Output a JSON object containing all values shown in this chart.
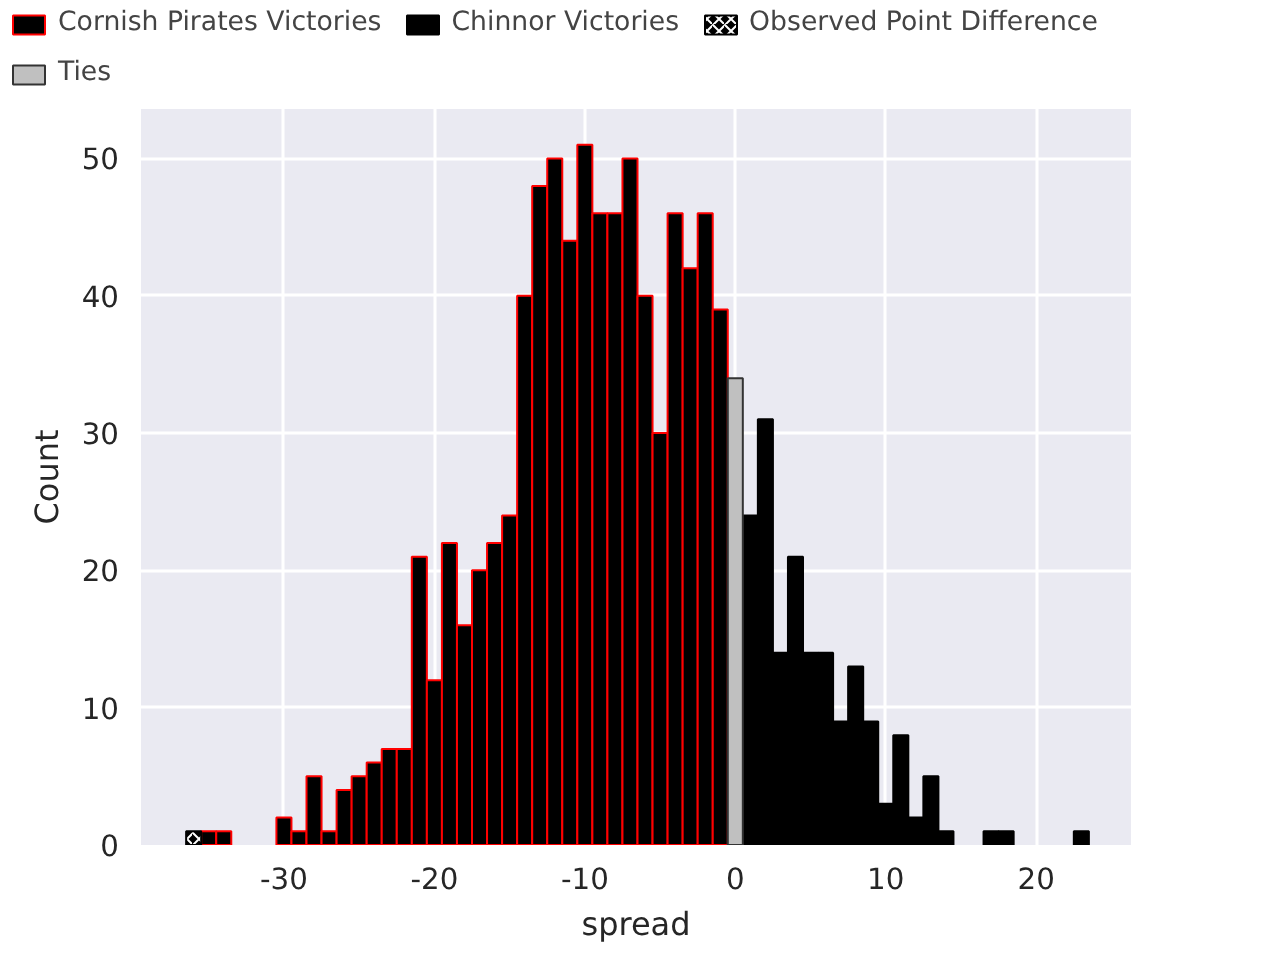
{
  "chart_data": {
    "type": "bar",
    "xlabel": "spread",
    "ylabel": "Count",
    "xlim": [
      -39.5,
      26.3
    ],
    "ylim": [
      0,
      53.6
    ],
    "xticks": [
      -30,
      -20,
      -10,
      0,
      10,
      20
    ],
    "yticks": [
      0,
      10,
      20,
      30,
      40,
      50
    ],
    "grid": true,
    "legend": "top",
    "series": [
      {
        "name": "Cornish Pirates Victories",
        "color": "#000000",
        "x": [
          -35,
          -34,
          -30,
          -29,
          -28,
          -27,
          -26,
          -25,
          -24,
          -23,
          -22,
          -21,
          -20,
          -19,
          -18,
          -17,
          -16,
          -15,
          -14,
          -13,
          -12,
          -11,
          -10,
          -9,
          -8,
          -7,
          -6,
          -5,
          -4,
          -3,
          -2,
          -1
        ],
        "values": [
          1,
          1,
          2,
          1,
          5,
          1,
          4,
          5,
          6,
          7,
          7,
          21,
          12,
          22,
          16,
          20,
          22,
          24,
          40,
          48,
          50,
          44,
          51,
          46,
          46,
          50,
          40,
          30,
          46,
          42,
          46,
          39
        ]
      },
      {
        "name": "Chinnor Victories",
        "color": "#000000",
        "x": [
          1,
          2,
          3,
          4,
          5,
          6,
          7,
          8,
          9,
          10,
          11,
          12,
          13,
          14,
          17,
          18,
          23
        ],
        "values": [
          24,
          31,
          14,
          21,
          14,
          14,
          9,
          13,
          9,
          3,
          8,
          2,
          5,
          1,
          1,
          1,
          1
        ]
      },
      {
        "name": "Observed Point Difference",
        "color": "#000000",
        "x": [
          -36
        ],
        "values": [
          1
        ]
      },
      {
        "name": "Ties",
        "color": "#c0c0c0",
        "x": [
          0
        ],
        "values": [
          34
        ]
      }
    ]
  }
}
